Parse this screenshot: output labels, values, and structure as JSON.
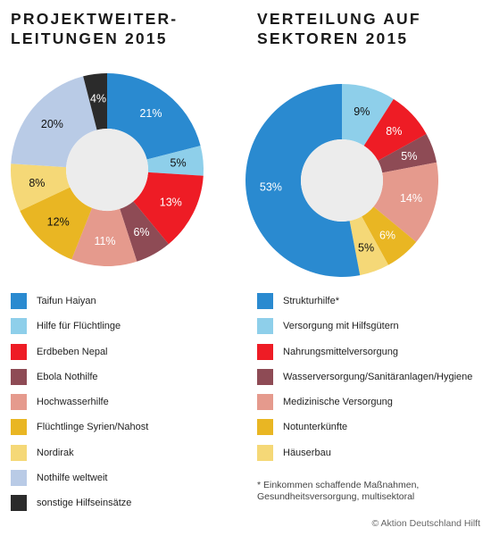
{
  "chart_data": [
    {
      "type": "pie",
      "title": "PROJEKTWEITER-LEITUNGEN 2015",
      "title_lines": [
        "PROJEKTWEITER-",
        "LEITUNGEN 2015"
      ],
      "unit": "%",
      "donut": true,
      "categories": [
        "Taifun Haiyan",
        "Hilfe für Flüchtlinge",
        "Erdbeben Nepal",
        "Ebola Nothilfe",
        "Hochwasserhilfe",
        "Flüchtlinge Syrien/Nahost",
        "Nordirak",
        "Nothilfe weltweit",
        "sonstige Hilfseinsätze"
      ],
      "values": [
        21,
        5,
        13,
        6,
        11,
        12,
        8,
        20,
        4
      ],
      "value_labels": [
        "21%",
        "5%",
        "13%",
        "6%",
        "11%",
        "12%",
        "8%",
        "20%",
        "4%"
      ],
      "colors": [
        "#2a8ad0",
        "#8ecfea",
        "#ee1c25",
        "#8e4b55",
        "#e59a8d",
        "#e9b623",
        "#f5d877",
        "#b9cbe6",
        "#2b2b2b"
      ],
      "label_colors": [
        "light",
        "dark",
        "light",
        "light",
        "light",
        "dark",
        "dark",
        "dark",
        "light"
      ],
      "legend_placement": "bottom"
    },
    {
      "type": "pie",
      "title": "VERTEILUNG AUF SEKTOREN 2015",
      "title_lines": [
        "VERTEILUNG AUF",
        "SEKTOREN 2015"
      ],
      "unit": "%",
      "donut": true,
      "categories": [
        "Strukturhilfe*",
        "Versorgung mit Hilfsgütern",
        "Nahrungsmittelversorgung",
        "Wasserversorgung/Sanitäranlagen/Hygiene",
        "Medizinische Versorgung",
        "Notunterkünfte",
        "Häuserbau"
      ],
      "values": [
        53,
        9,
        8,
        5,
        14,
        6,
        5
      ],
      "value_labels": [
        "53%",
        "9%",
        "8%",
        "5%",
        "14%",
        "6%",
        "5%"
      ],
      "colors": [
        "#2a8ad0",
        "#8ecfea",
        "#ee1c25",
        "#8e4b55",
        "#e59a8d",
        "#e9b623",
        "#f5d877"
      ],
      "label_colors": [
        "light",
        "dark",
        "light",
        "light",
        "light",
        "light",
        "dark"
      ],
      "slice_order": [
        1,
        2,
        3,
        4,
        5,
        6,
        0
      ],
      "legend_placement": "bottom",
      "footnote_lines": [
        "* Einkommen schaffende Maßnahmen,",
        "Gesundheitsversorgung, multisektoral"
      ]
    }
  ],
  "credit": "© Aktion Deutschland Hilft"
}
